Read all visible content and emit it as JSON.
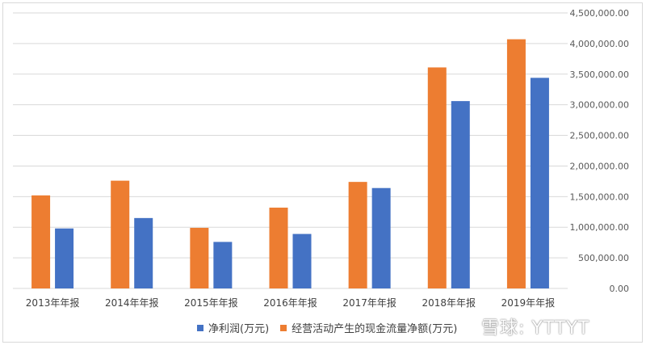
{
  "chart_data": {
    "type": "bar",
    "categories": [
      "2013年年报",
      "2014年年报",
      "2015年年报",
      "2016年年报",
      "2017年年报",
      "2018年年报",
      "2019年年报"
    ],
    "series": [
      {
        "name": "经营活动产生的现金流量净额(万元)",
        "color": "#ed7d31",
        "values": [
          1520000,
          1760000,
          990000,
          1320000,
          1740000,
          3610000,
          4070000
        ]
      },
      {
        "name": "净利润(万元)",
        "color": "#4472c4",
        "values": [
          980000,
          1150000,
          760000,
          890000,
          1640000,
          3060000,
          3440000
        ]
      }
    ],
    "ylim": [
      0,
      4500000
    ],
    "y_ticks": [
      0,
      500000,
      1000000,
      1500000,
      2000000,
      2500000,
      3000000,
      3500000,
      4000000,
      4500000
    ],
    "y_tick_labels": [
      "0.00",
      "500,000.00",
      "1,000,000.00",
      "1,500,000.00",
      "2,000,000.00",
      "2,500,000.00",
      "3,000,000.00",
      "3,500,000.00",
      "4,000,000.00",
      "4,500,000.00"
    ],
    "grid": true,
    "y_axis_position": "right",
    "legend_position": "bottom",
    "legend_order": [
      "净利润(万元)",
      "经营活动产生的现金流量净额(万元)"
    ]
  },
  "watermark": "雪球: YTTYT"
}
